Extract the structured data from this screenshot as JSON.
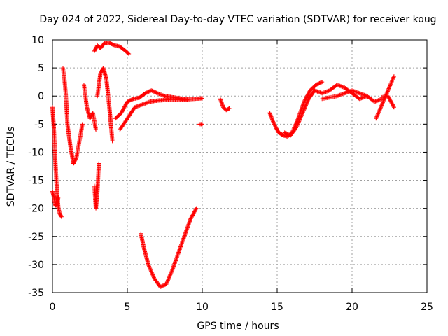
{
  "chart_data": {
    "type": "scatter",
    "title": "Day 024 of 2022, Sidereal Day-to-day VTEC variation (SDTVAR) for receiver koug",
    "xlabel": "GPS time / hours",
    "ylabel": "SDTVAR / TECUs",
    "xlim": [
      0,
      25
    ],
    "ylim": [
      -35,
      10
    ],
    "xticks": [
      0,
      5,
      10,
      15,
      20,
      25
    ],
    "yticks": [
      10,
      5,
      0,
      -5,
      -10,
      -15,
      -20,
      -25,
      -30,
      -35
    ],
    "grid": true,
    "marker": "+",
    "color": "#ff0000",
    "series": [
      {
        "name": "SDTVAR",
        "segments": [
          {
            "x": [
              0.0,
              0.1,
              0.2,
              0.3,
              0.4,
              0.5,
              0.6
            ],
            "y": [
              -2,
              -6,
              -12,
              -17,
              -20,
              -21,
              -21.5
            ]
          },
          {
            "x": [
              0.0,
              0.1,
              0.2,
              0.3,
              0.4
            ],
            "y": [
              -17,
              -18,
              -19.5,
              -19,
              -18
            ]
          },
          {
            "x": [
              0.7,
              0.8,
              0.9,
              1.0,
              1.2,
              1.4,
              1.6,
              1.8,
              2.0
            ],
            "y": [
              5,
              3,
              0,
              -5,
              -9,
              -12,
              -11,
              -8,
              -5
            ]
          },
          {
            "x": [
              2.1,
              2.3,
              2.5,
              2.7,
              2.9
            ],
            "y": [
              2,
              -2,
              -4,
              -3,
              -6
            ]
          },
          {
            "x": [
              2.8,
              2.9,
              3.0,
              3.1
            ],
            "y": [
              -16,
              -20,
              -17,
              -12
            ]
          },
          {
            "x": [
              2.8,
              3.0,
              3.2,
              3.5,
              3.8,
              4.0,
              4.2,
              4.5,
              4.8,
              5.1
            ],
            "y": [
              8,
              9,
              8.5,
              9.5,
              9.5,
              9.2,
              9,
              8.8,
              8.2,
              7.5
            ]
          },
          {
            "x": [
              3.0,
              3.2,
              3.4,
              3.6,
              3.8,
              4.0
            ],
            "y": [
              0,
              4,
              5,
              3,
              -2,
              -8
            ]
          },
          {
            "x": [
              4.2,
              4.6,
              5.0,
              5.4,
              5.8,
              6.2,
              6.6,
              7.0,
              7.5,
              8.0,
              8.5,
              9.0,
              9.5,
              10.0
            ],
            "y": [
              -4,
              -3,
              -1,
              -0.5,
              -0.3,
              0.5,
              1,
              0.5,
              0,
              -0.2,
              -0.4,
              -0.6,
              -0.5,
              -0.4
            ]
          },
          {
            "x": [
              4.5,
              5.0,
              5.5,
              6.0,
              6.5,
              7.0,
              8.0,
              9.0
            ],
            "y": [
              -6,
              -4,
              -2,
              -1.5,
              -1,
              -0.8,
              -0.6,
              -0.7
            ]
          },
          {
            "x": [
              5.9,
              6.1,
              6.4,
              6.8,
              7.2,
              7.6,
              8.0,
              8.4,
              8.8,
              9.2,
              9.6
            ],
            "y": [
              -24.5,
              -27,
              -30,
              -32.5,
              -34,
              -33.5,
              -31,
              -28,
              -25,
              -22,
              -20
            ]
          },
          {
            "x": [
              9.8,
              10.0
            ],
            "y": [
              -5,
              -5
            ]
          },
          {
            "x": [
              11.2,
              11.4,
              11.6,
              11.8
            ],
            "y": [
              -0.5,
              -2,
              -2.5,
              -2.2
            ]
          },
          {
            "x": [
              14.5,
              14.8,
              15.1,
              15.4,
              15.7,
              16.0,
              16.4,
              16.8,
              17.2,
              17.6,
              18.0
            ],
            "y": [
              -3,
              -5,
              -6.5,
              -7,
              -7.2,
              -6.5,
              -4,
              -1,
              1,
              2,
              2.5
            ]
          },
          {
            "x": [
              15.5,
              15.9,
              16.3,
              16.7,
              17.1,
              17.5,
              18.0,
              18.5,
              19.0,
              19.5,
              20.0,
              20.5,
              21.0
            ],
            "y": [
              -6.5,
              -7,
              -5.5,
              -3,
              -0.5,
              1,
              0.5,
              1,
              2,
              1.5,
              0.5,
              -0.5,
              0
            ]
          },
          {
            "x": [
              18.0,
              19.0,
              20.0,
              21.0,
              21.5,
              22.0
            ],
            "y": [
              -0.5,
              0,
              1,
              0,
              -1,
              -0.5
            ]
          },
          {
            "x": [
              21.6,
              22.0,
              22.4,
              22.8
            ],
            "y": [
              -4,
              -1.5,
              1,
              3.5
            ]
          },
          {
            "x": [
              22.0,
              22.4,
              22.8
            ],
            "y": [
              -0.2,
              0,
              -2
            ]
          }
        ]
      }
    ]
  }
}
